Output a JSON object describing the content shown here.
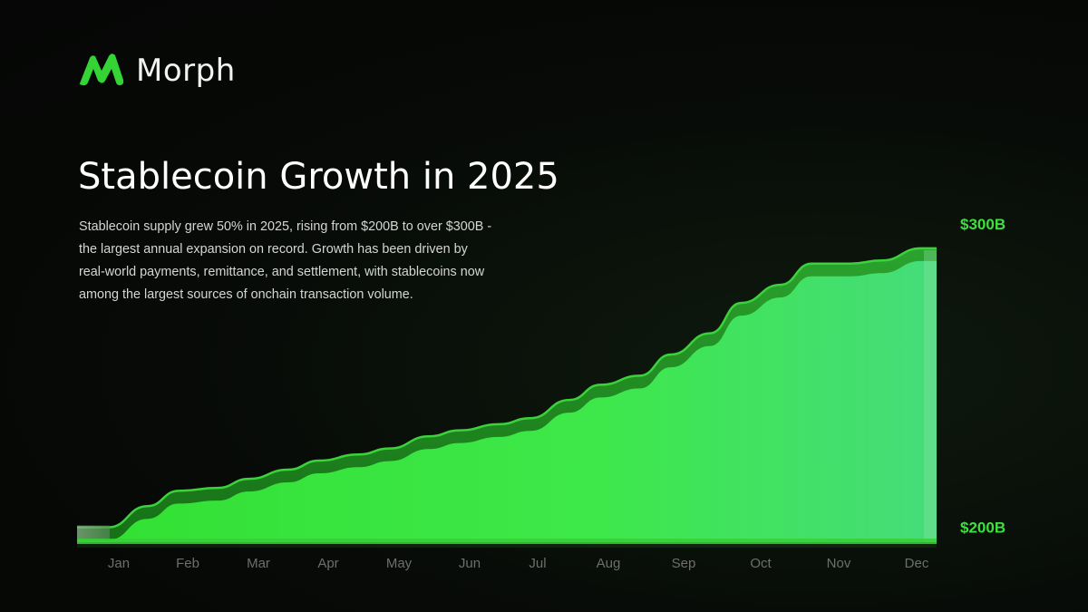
{
  "brand": {
    "name": "Morph",
    "color": "#33d433"
  },
  "header": {
    "title": "Stablecoin Growth in 2025",
    "description": "Stablecoin supply grew 50% in 2025, rising from $200B to over $300B - the largest annual expansion on record. Growth has been driven by real-world payments, remittance, and settlement, with stablecoins now among the largest sources of onchain transaction volume."
  },
  "chart_data": {
    "type": "area",
    "title": "Stablecoin Growth in 2025",
    "xlabel": "",
    "ylabel": "",
    "categories": [
      "Jan",
      "Feb",
      "Mar",
      "Apr",
      "May",
      "Jun",
      "Jul",
      "Aug",
      "Sep",
      "Oct",
      "Nov",
      "Dec"
    ],
    "y_tick_labels": [
      "$200B",
      "$300B"
    ],
    "y_tick_values": [
      200,
      300
    ],
    "ylim": [
      190,
      318
    ],
    "x": [
      0.0,
      0.4,
      0.9,
      1.3,
      1.8,
      2.2,
      2.7,
      3.1,
      3.6,
      4.0,
      4.5,
      4.9,
      5.4,
      5.8,
      6.3,
      6.7,
      7.2,
      7.6,
      8.1,
      8.5,
      9.0,
      9.4,
      9.9,
      10.3,
      10.8,
      11.0
    ],
    "values": [
      200,
      200,
      207,
      212,
      213,
      216,
      219,
      222,
      224,
      226,
      230,
      232,
      234,
      236,
      242,
      247,
      250,
      257,
      264,
      274,
      280,
      287,
      287,
      288,
      292,
      292
    ],
    "grid": false,
    "colors": {
      "fill": "#3fe83f",
      "ribbon": "#1f8a1f",
      "tick_label": "#3fdf3f",
      "month_label": "#6d6f6d"
    }
  }
}
